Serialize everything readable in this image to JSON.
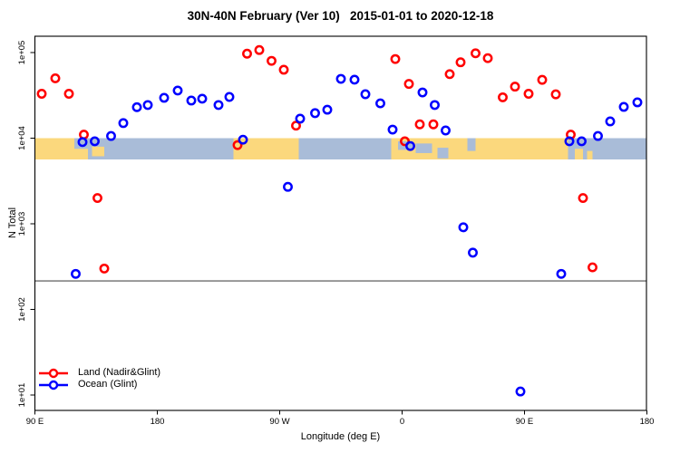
{
  "title": "30N-40N February (Ver 10)   2015-01-01 to 2020-12-18",
  "chart_data": {
    "type": "scatter",
    "title": "30N-40N February (Ver 10)   2015-01-01 to 2020-12-18",
    "xlabel": "Longitude (deg E)",
    "ylabel": "N Total",
    "x_axis": {
      "note": "longitude axis wraps eastward from 90E to 180 (values 90..540 deg E)",
      "range": [
        90,
        540
      ],
      "ticks": [
        {
          "label": "90 E",
          "lon": 90
        },
        {
          "label": "180",
          "lon": 180
        },
        {
          "label": "90 W",
          "lon": 270
        },
        {
          "label": "0",
          "lon": 360
        },
        {
          "label": "90 E",
          "lon": 450
        },
        {
          "label": "180",
          "lon": 540
        }
      ]
    },
    "y_axis": {
      "scale": "log",
      "range": [
        10,
        100000
      ],
      "ticks": [
        {
          "label": "1e+01",
          "value": 10
        },
        {
          "label": "1e+02",
          "value": 100
        },
        {
          "label": "1e+03",
          "value": 1000
        },
        {
          "label": "1e+04",
          "value": 10000
        },
        {
          "label": "1e+05",
          "value": 100000
        }
      ]
    },
    "reference_line": {
      "value": 215,
      "color": "#4d4d4d"
    },
    "map_band": {
      "note": "30N-40N world-map strip drawn across the plot",
      "value_top": 10000,
      "value_bottom": 5600,
      "ocean_color": "#a9bcd8",
      "land_color": "#fbd87d",
      "land_segments": [
        {
          "from": 90,
          "to": 123
        },
        {
          "from": 123,
          "to": 129,
          "t0": 0.5,
          "t1": 1
        },
        {
          "from": 132,
          "to": 141,
          "t0": 0.4,
          "t1": 0.85
        },
        {
          "from": 236,
          "to": 284
        },
        {
          "from": 352,
          "to": 482
        },
        {
          "from": 487,
          "to": 493,
          "t0": 0.5,
          "t1": 1
        },
        {
          "from": 496,
          "to": 500,
          "t0": 0.6,
          "t1": 1
        }
      ],
      "ocean_patches": [
        {
          "from": 357,
          "to": 368,
          "t0": 0.15,
          "t1": 0.55
        },
        {
          "from": 370,
          "to": 382,
          "t0": 0.25,
          "t1": 0.7
        },
        {
          "from": 386,
          "to": 394,
          "t0": 0.45,
          "t1": 0.95
        },
        {
          "from": 408,
          "to": 414,
          "t0": 0.0,
          "t1": 0.6
        },
        {
          "from": 119,
          "to": 123,
          "t0": 0.0,
          "t1": 0.5
        }
      ]
    },
    "series": [
      {
        "name": "Land (Nadir&Glint)",
        "color": "#ff0000",
        "marker": "open-circle",
        "points": [
          [
            95,
            33000
          ],
          [
            105,
            50000
          ],
          [
            115,
            33000
          ],
          [
            126,
            11000
          ],
          [
            136,
            2000
          ],
          [
            141,
            300
          ],
          [
            239,
            8300
          ],
          [
            246,
            97000
          ],
          [
            255,
            107000
          ],
          [
            264,
            80000
          ],
          [
            273,
            63000
          ],
          [
            282,
            14000
          ],
          [
            355,
            84000
          ],
          [
            362,
            9200
          ],
          [
            365,
            43000
          ],
          [
            373,
            14500
          ],
          [
            383,
            14500
          ],
          [
            395,
            56000
          ],
          [
            403,
            77000
          ],
          [
            414,
            98000
          ],
          [
            423,
            86000
          ],
          [
            434,
            30000
          ],
          [
            443,
            40000
          ],
          [
            453,
            33000
          ],
          [
            463,
            48000
          ],
          [
            473,
            32500
          ],
          [
            484,
            11000
          ],
          [
            493,
            2000
          ],
          [
            500,
            310
          ]
        ]
      },
      {
        "name": "Ocean (Glint)",
        "color": "#0000ff",
        "marker": "open-circle",
        "points": [
          [
            120,
            260
          ],
          [
            125,
            9000
          ],
          [
            134,
            9200
          ],
          [
            146,
            10600
          ],
          [
            155,
            15000
          ],
          [
            165,
            23000
          ],
          [
            173,
            24400
          ],
          [
            185,
            29600
          ],
          [
            195,
            36000
          ],
          [
            205,
            27500
          ],
          [
            213,
            28900
          ],
          [
            225,
            24400
          ],
          [
            233,
            30300
          ],
          [
            243,
            9600
          ],
          [
            276,
            2700
          ],
          [
            285,
            16900
          ],
          [
            296,
            19600
          ],
          [
            305,
            21500
          ],
          [
            315,
            49300
          ],
          [
            325,
            48200
          ],
          [
            333,
            32600
          ],
          [
            344,
            25500
          ],
          [
            353,
            12600
          ],
          [
            366,
            8100
          ],
          [
            375,
            34200
          ],
          [
            384,
            24400
          ],
          [
            392,
            12300
          ],
          [
            405,
            910
          ],
          [
            412,
            460
          ],
          [
            447,
            11
          ],
          [
            477,
            260
          ],
          [
            483,
            9200
          ],
          [
            492,
            9200
          ],
          [
            504,
            10600
          ],
          [
            513,
            15700
          ],
          [
            523,
            23200
          ],
          [
            533,
            26200
          ]
        ]
      }
    ],
    "legend_position": "bottom-left"
  }
}
